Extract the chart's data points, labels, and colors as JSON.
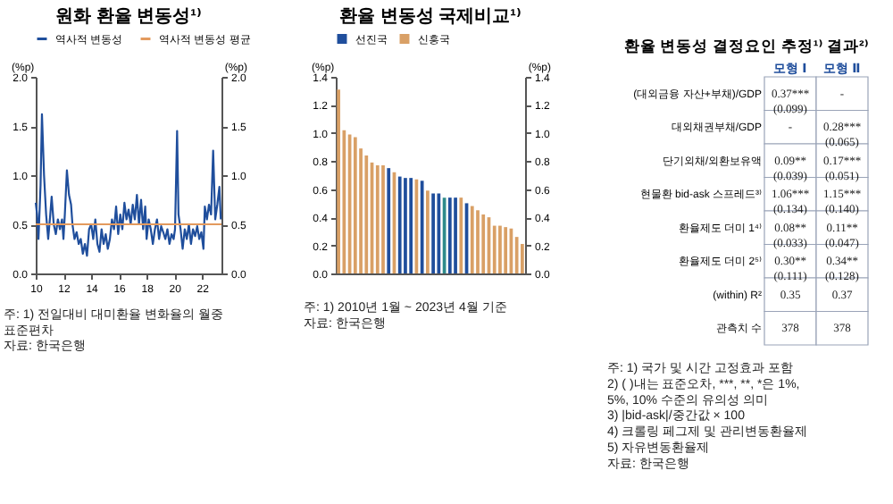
{
  "chart_data": [
    {
      "type": "line",
      "title": "원화 환율 변동성¹⁾",
      "ylabel": "(%p)",
      "y2label": "(%p)",
      "legend": "top",
      "grid": false,
      "xlim": [
        2010,
        2023.4
      ],
      "xticks": [
        {
          "value": 2010,
          "label": "10"
        },
        {
          "value": 2012,
          "label": "12"
        },
        {
          "value": 2014,
          "label": "14"
        },
        {
          "value": 2016,
          "label": "16"
        },
        {
          "value": 2018,
          "label": "18"
        },
        {
          "value": 2020,
          "label": "20"
        },
        {
          "value": 2022,
          "label": "22"
        }
      ],
      "ylim": [
        0,
        2
      ],
      "yticks": [
        {
          "value": 0,
          "label": "0.0"
        },
        {
          "value": 0.5,
          "label": "0.5"
        },
        {
          "value": 1,
          "label": "1.0"
        },
        {
          "value": 1.5,
          "label": "1.5"
        },
        {
          "value": 2,
          "label": "2.0"
        }
      ],
      "y2lim": [
        0,
        2
      ],
      "y2ticks": [
        {
          "value": 0,
          "label": "0.0"
        },
        {
          "value": 0.5,
          "label": "0.5"
        },
        {
          "value": 1,
          "label": "1.0"
        },
        {
          "value": 1.5,
          "label": "1.5"
        },
        {
          "value": 2,
          "label": "2.0"
        }
      ],
      "series": [
        {
          "name": "역사적 변동성",
          "color": "#1f4e9c",
          "x": [
            2010.0,
            2010.1,
            2010.2,
            2010.35,
            2010.45,
            2010.6,
            2010.75,
            2010.9,
            2011.05,
            2011.15,
            2011.3,
            2011.45,
            2011.6,
            2011.75,
            2011.9,
            2012.0,
            2012.1,
            2012.25,
            2012.4,
            2012.55,
            2012.65,
            2012.8,
            2012.95,
            2013.1,
            2013.25,
            2013.4,
            2013.55,
            2013.7,
            2013.85,
            2014.0,
            2014.15,
            2014.3,
            2014.45,
            2014.6,
            2014.75,
            2014.9,
            2015.05,
            2015.2,
            2015.35,
            2015.5,
            2015.65,
            2015.8,
            2015.95,
            2016.1,
            2016.25,
            2016.4,
            2016.55,
            2016.7,
            2016.85,
            2017.0,
            2017.15,
            2017.3,
            2017.45,
            2017.6,
            2017.75,
            2017.9,
            2018.0,
            2018.15,
            2018.3,
            2018.45,
            2018.6,
            2018.75,
            2018.9,
            2019.05,
            2019.2,
            2019.35,
            2019.5,
            2019.65,
            2019.8,
            2019.95,
            2020.05,
            2020.2,
            2020.3,
            2020.45,
            2020.6,
            2020.75,
            2020.9,
            2021.05,
            2021.2,
            2021.35,
            2021.5,
            2021.65,
            2021.8,
            2021.95,
            2022.1,
            2022.2,
            2022.35,
            2022.5,
            2022.65,
            2022.8,
            2022.95,
            2023.1,
            2023.25,
            2023.35
          ],
          "values": [
            0.72,
            0.6,
            0.35,
            0.9,
            1.62,
            1.0,
            0.6,
            0.35,
            0.6,
            0.78,
            0.5,
            0.4,
            0.55,
            0.45,
            0.55,
            0.35,
            0.6,
            1.05,
            0.8,
            0.7,
            0.5,
            0.35,
            0.42,
            0.3,
            0.35,
            0.2,
            0.3,
            0.18,
            0.45,
            0.5,
            0.35,
            0.55,
            0.3,
            0.22,
            0.45,
            0.3,
            0.4,
            0.25,
            0.35,
            0.55,
            0.45,
            0.68,
            0.4,
            0.6,
            0.45,
            0.72,
            0.55,
            0.65,
            0.5,
            0.7,
            0.55,
            0.8,
            0.5,
            0.75,
            0.45,
            0.68,
            0.35,
            0.55,
            0.45,
            0.3,
            0.45,
            0.55,
            0.35,
            0.48,
            0.42,
            0.35,
            0.45,
            0.3,
            0.4,
            0.35,
            0.45,
            1.45,
            0.6,
            0.45,
            0.25,
            0.45,
            0.35,
            0.5,
            0.3,
            0.45,
            0.38,
            0.48,
            0.35,
            0.42,
            0.25,
            0.68,
            0.55,
            0.7,
            0.6,
            1.25,
            0.55,
            0.7,
            0.88,
            0.55
          ]
        },
        {
          "name": "역사적 변동성 평균",
          "color": "#e39a5e",
          "x": [
            2010,
            2023.4
          ],
          "values": [
            0.5,
            0.5
          ]
        }
      ],
      "annotations": [
        "주: 1) 전일대비 대미환율 변화율의 월중 표준편차",
        "자료: 한국은행"
      ]
    },
    {
      "type": "bar",
      "title": "환율 변동성 국제비교¹⁾",
      "ylabel": "(%p)",
      "y2label": "(%p)",
      "legend": "top",
      "grid": false,
      "categories": [
        null,
        null,
        null,
        null,
        null,
        null,
        null,
        null,
        null,
        null,
        null,
        null,
        null,
        null,
        null,
        null,
        null,
        null,
        null,
        null,
        null,
        null,
        null,
        null,
        null,
        null,
        null,
        null,
        null,
        null,
        null,
        null,
        null,
        null
      ],
      "ylim": [
        0,
        1.4
      ],
      "yticks": [
        {
          "value": 0,
          "label": "0.0"
        },
        {
          "value": 0.2,
          "label": "0.2"
        },
        {
          "value": 0.4,
          "label": "0.4"
        },
        {
          "value": 0.6,
          "label": "0.6"
        },
        {
          "value": 0.8,
          "label": "0.8"
        },
        {
          "value": 1,
          "label": "1.0"
        },
        {
          "value": 1.2,
          "label": "1.2"
        },
        {
          "value": 1.4,
          "label": "1.4"
        }
      ],
      "y2lim": [
        0,
        1.4
      ],
      "y2ticks": [
        {
          "value": 0,
          "label": "0.0"
        },
        {
          "value": 0.2,
          "label": "0.2"
        },
        {
          "value": 0.4,
          "label": "0.4"
        },
        {
          "value": 0.6,
          "label": "0.6"
        },
        {
          "value": 0.8,
          "label": "0.8"
        },
        {
          "value": 1,
          "label": "1.0"
        },
        {
          "value": 1.2,
          "label": "1.2"
        },
        {
          "value": 1.4,
          "label": "1.4"
        }
      ],
      "series": [
        {
          "name": "선진국",
          "color": "#1f4e9c",
          "values": [
            null,
            null,
            null,
            null,
            null,
            null,
            null,
            null,
            null,
            0.75,
            null,
            0.69,
            0.68,
            0.68,
            null,
            0.66,
            null,
            0.57,
            0.57,
            null,
            0.54,
            0.54,
            null,
            0.5,
            null,
            null,
            null,
            null,
            null,
            null,
            null,
            null,
            null,
            null
          ]
        },
        {
          "name": "신흥국",
          "color": "#d9a066",
          "values": [
            1.31,
            1.02,
            0.99,
            0.97,
            0.89,
            0.84,
            0.79,
            0.77,
            0.77,
            null,
            0.72,
            null,
            null,
            null,
            0.67,
            null,
            0.59,
            null,
            null,
            null,
            null,
            null,
            0.54,
            null,
            0.48,
            0.45,
            0.42,
            0.4,
            0.34,
            0.34,
            0.33,
            0.32,
            0.26,
            0.21
          ]
        },
        {
          "color": "#2e8b8b",
          "values": [
            null,
            null,
            null,
            null,
            null,
            null,
            null,
            null,
            null,
            null,
            null,
            null,
            null,
            null,
            null,
            null,
            null,
            null,
            null,
            0.54,
            null,
            null,
            null,
            null,
            null,
            null,
            null,
            null,
            null,
            null,
            null,
            null,
            null,
            null
          ]
        }
      ],
      "annotations": [
        "주: 1) 2010년 1월 ~ 2023년 4월 기준",
        "자료: 한국은행"
      ]
    },
    {
      "type": "other",
      "title": "환율 변동성 결정요인 추정¹⁾ 결과²⁾",
      "categories": [
        "모형 Ⅰ",
        "모형 Ⅱ"
      ],
      "y_categories": [
        "(대외금융 자산+부채)/GDP",
        "대외채권부채/GDP",
        "단기외채/외환보유액",
        "현물환 bid-ask 스프레드³⁾",
        "환율제도 더미 1⁴⁾",
        "환율제도 더미 2⁵⁾",
        "(within) R²",
        "관측치 수"
      ],
      "cell_labels": [
        [
          "0.37***\n(0.099)",
          "-"
        ],
        [
          "-",
          "0.28***\n(0.065)"
        ],
        [
          "0.09**\n(0.039)",
          "0.17***\n(0.051)"
        ],
        [
          "1.06***\n(0.134)",
          "1.15***\n(0.140)"
        ],
        [
          "0.08**\n(0.033)",
          "0.11**\n(0.047)"
        ],
        [
          "0.30**\n(0.111)",
          "0.34**\n(0.128)"
        ],
        [
          "0.35",
          "0.37"
        ],
        [
          "378",
          "378"
        ]
      ],
      "annotations": [
        "주: 1) 국가 및 시간 고정효과 포함",
        "2) ( )내는 표준오차, ***, **, *은 1%, 5%, 10% 수준의 유의성 의미",
        "3) |bid-ask|/중간값 × 100",
        "4) 크롤링 페그제 및 관리변동환율제",
        "5) 자유변동환율제",
        "자료: 한국은행"
      ]
    }
  ]
}
